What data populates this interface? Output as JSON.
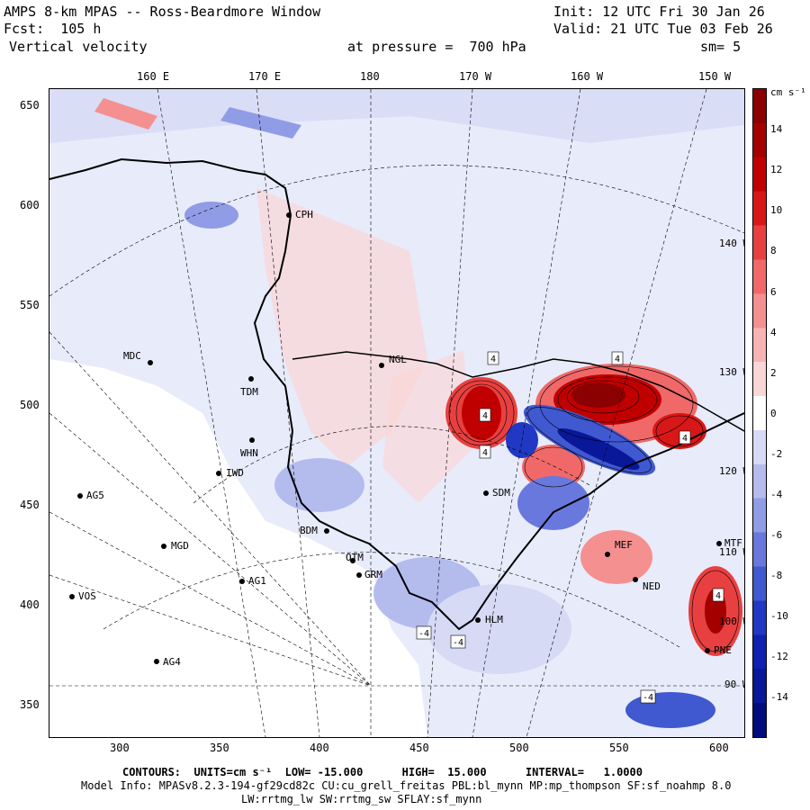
{
  "header": {
    "title": "AMPS 8-km MPAS -- Ross-Beardmore Window",
    "fcst": "Fcst:  105 h",
    "field": "Vertical velocity",
    "init": "Init: 12 UTC Fri 30 Jan 26",
    "valid": "Valid: 21 UTC Tue 03 Feb 26",
    "pressure": "at pressure =  700 hPa",
    "smooth": "sm= 5"
  },
  "axes": {
    "top_lon": [
      "160 E",
      "170 E",
      "180",
      "170 W",
      "160 W",
      "150 W"
    ],
    "left_y": [
      "650",
      "600",
      "550",
      "500",
      "450",
      "400",
      "350"
    ],
    "bottom_x": [
      "300",
      "350",
      "400",
      "450",
      "500",
      "550",
      "600"
    ]
  },
  "colorbar": {
    "unit": "cm s⁻¹",
    "labels": [
      "14",
      "12",
      "10",
      "8",
      "6",
      "4",
      "2",
      "0",
      "-2",
      "-4",
      "-6",
      "-8",
      "-10",
      "-12",
      "-14"
    ],
    "colors": [
      "#8b0000",
      "#a50000",
      "#c00000",
      "#d81818",
      "#e84040",
      "#f06868",
      "#f59090",
      "#f8b4b4",
      "#fbd6d6",
      "#ffffff",
      "#d6daf5",
      "#b4bcee",
      "#909ce6",
      "#6878dc",
      "#4058d0",
      "#2038c4",
      "#1020b0",
      "#081898",
      "#000c7e"
    ]
  },
  "map_labels": {
    "lon_edge": [
      "140 W",
      "130 W",
      "120 W",
      "110 W",
      "100 W",
      "90 W"
    ],
    "contour_tags": [
      "4",
      "4",
      "4",
      "4",
      "4",
      "4",
      "-4",
      "-4",
      "-4"
    ]
  },
  "stations": [
    {
      "id": "CPH"
    },
    {
      "id": "MDC"
    },
    {
      "id": "TDM"
    },
    {
      "id": "NGL"
    },
    {
      "id": "WHN"
    },
    {
      "id": "IWD"
    },
    {
      "id": "AG5"
    },
    {
      "id": "SDM"
    },
    {
      "id": "BDM"
    },
    {
      "id": "MGD"
    },
    {
      "id": "OTM"
    },
    {
      "id": "GRM"
    },
    {
      "id": "AG1"
    },
    {
      "id": "VOS"
    },
    {
      "id": "HLM"
    },
    {
      "id": "AG4"
    },
    {
      "id": "MEF"
    },
    {
      "id": "NED"
    },
    {
      "id": "MTF"
    },
    {
      "id": "PNE"
    }
  ],
  "footer": {
    "contours": "CONTOURS:  UNITS=cm s⁻¹  LOW= -15.000      HIGH=  15.000      INTERVAL=   1.0000",
    "model": "Model Info: MPASv8.2.3-194-gf29cd82c CU:cu_grell_freitas PBL:bl_mynn MP:mp_thompson SF:sf_noahmp 8.0",
    "model2": "LW:rrtmg_lw SW:rrtmg_sw SFLAY:sf_mynn"
  }
}
